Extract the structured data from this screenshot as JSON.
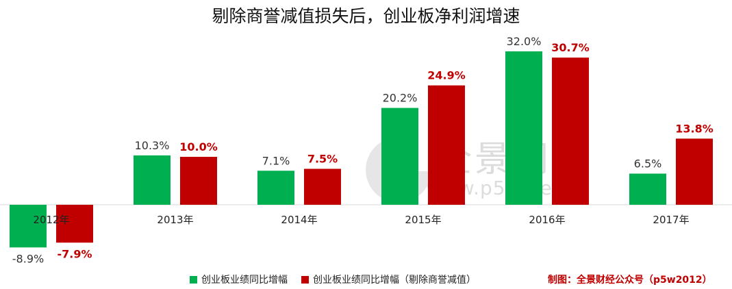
{
  "title": "剔除商誉减值损失后，创业板净利润增速",
  "watermark": {
    "main": "全景网",
    "sub": "www.p5w.net"
  },
  "credit": "制图：全景财经公众号（p5w2012）",
  "colors": {
    "green": "#00b050",
    "red": "#c00000",
    "label_green_series": "#333333",
    "label_red_series": "#c00000"
  },
  "chart_data": {
    "type": "bar",
    "categories": [
      "2012年",
      "2013年",
      "2014年",
      "2015年",
      "2016年",
      "2017年"
    ],
    "series": [
      {
        "name": "创业板业绩同比增幅",
        "values": [
          -8.9,
          10.3,
          7.1,
          20.2,
          32.0,
          6.5
        ],
        "labels": [
          "-8.9%",
          "10.3%",
          "7.1%",
          "20.2%",
          "32.0%",
          "6.5%"
        ],
        "color": "#00b050"
      },
      {
        "name": "创业板业绩同比增幅（剔除商誉减值）",
        "values": [
          -7.9,
          10.0,
          7.5,
          24.9,
          30.7,
          13.8
        ],
        "labels": [
          "-7.9%",
          "10.0%",
          "7.5%",
          "24.9%",
          "30.7%",
          "13.8%"
        ],
        "color": "#c00000"
      }
    ],
    "ylim": [
      -12,
      34
    ],
    "grid": false,
    "legend_position": "bottom"
  }
}
